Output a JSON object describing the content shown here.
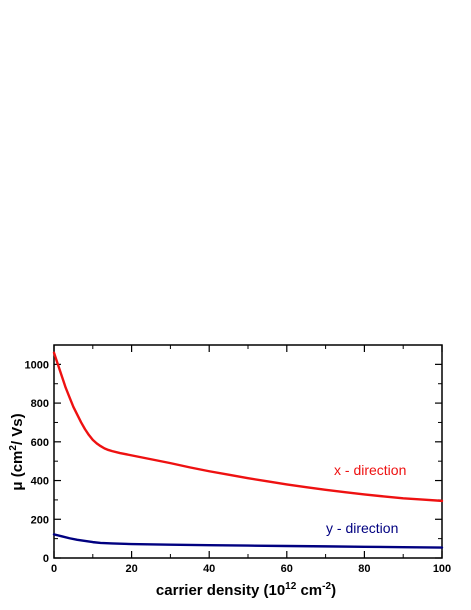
{
  "chart_data": {
    "type": "line",
    "title": "",
    "xlabel": "carrier density (10<sup>12</sup> cm<sup>-2</sup>)",
    "xlabel_parts": {
      "base": "carrier density (10",
      "exp1": "12",
      "mid": " cm",
      "exp2": "-2",
      "end": ")"
    },
    "ylabel_parts": {
      "base": "μ (cm",
      "exp": "2",
      "end": "/ Vs)"
    },
    "xlim": [
      0,
      100
    ],
    "ylim": [
      0,
      1100
    ],
    "xticks": [
      0,
      20,
      40,
      60,
      80,
      100
    ],
    "yticks": [
      0,
      200,
      400,
      600,
      800,
      1000
    ],
    "grid": false,
    "series": [
      {
        "name": "x - direction",
        "color": "#ee1111",
        "x": [
          0,
          1,
          2,
          3,
          4,
          5,
          6,
          7,
          8,
          9,
          10,
          11,
          12,
          13,
          14,
          15,
          17,
          20,
          25,
          30,
          35,
          40,
          45,
          50,
          55,
          60,
          65,
          70,
          75,
          80,
          85,
          90,
          95,
          100
        ],
        "y": [
          1060,
          1000,
          940,
          880,
          830,
          780,
          740,
          700,
          665,
          635,
          610,
          592,
          578,
          566,
          558,
          552,
          542,
          530,
          510,
          490,
          468,
          448,
          430,
          412,
          396,
          380,
          366,
          352,
          340,
          328,
          318,
          308,
          302,
          295
        ]
      },
      {
        "name": "y - direction",
        "color": "#000080",
        "x": [
          0,
          2,
          4,
          6,
          8,
          10,
          12,
          15,
          20,
          30,
          40,
          50,
          60,
          70,
          80,
          90,
          100
        ],
        "y": [
          122,
          112,
          102,
          94,
          88,
          82,
          78,
          75,
          72,
          69,
          66,
          64,
          62,
          60,
          58,
          56,
          54
        ]
      }
    ]
  }
}
